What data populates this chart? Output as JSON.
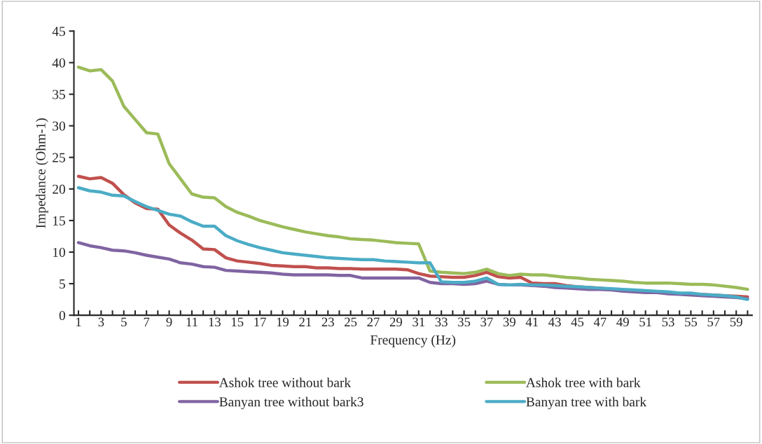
{
  "chart_data": {
    "type": "line",
    "xlabel": "Frequency (Hz)",
    "ylabel": "Impedance (Ohm-1)",
    "categories": [
      "1",
      null,
      "3",
      null,
      "5",
      null,
      "7",
      null,
      "9",
      null,
      "11",
      null,
      "13",
      null,
      "15",
      null,
      "17",
      null,
      "19",
      null,
      "21",
      null,
      "23",
      null,
      "25",
      null,
      "27",
      null,
      "29",
      null,
      "31",
      null,
      "33",
      null,
      "35",
      null,
      "37",
      null,
      "39",
      null,
      "41",
      null,
      "43",
      null,
      "45",
      null,
      "47",
      null,
      "49",
      null,
      "51",
      null,
      "53",
      null,
      "55",
      null,
      "57",
      null,
      "59",
      null
    ],
    "ylim": [
      0,
      45
    ],
    "yticks": [
      0,
      5,
      10,
      15,
      20,
      25,
      30,
      35,
      40,
      45
    ],
    "grid": false,
    "legend": "bottom",
    "marker": "none",
    "line_style": "solid",
    "series": [
      {
        "name": "Ashok tree without bark",
        "color": "#c0504d",
        "values": [
          22,
          21.6,
          21.8,
          20.9,
          19.1,
          17.8,
          16.9,
          16.8,
          14.3,
          13,
          11.9,
          10.5,
          10.4,
          9.1,
          8.6,
          8.4,
          8.2,
          7.9,
          7.8,
          7.7,
          7.7,
          7.5,
          7.5,
          7.4,
          7.4,
          7.3,
          7.3,
          7.3,
          7.3,
          7.2,
          6.6,
          6.2,
          6.1,
          6.0,
          6.0,
          6.3,
          6.8,
          6.1,
          5.9,
          6.0,
          5.1,
          5.0,
          5.0,
          4.7,
          4.5,
          4.4,
          4.3,
          4.1,
          4.0,
          3.9,
          3.8,
          3.7,
          3.5,
          3.4,
          3.3,
          3.3,
          3.2,
          3.1,
          3.0,
          2.9
        ]
      },
      {
        "name": "Ashok tree with bark",
        "color": "#9bbb59",
        "values": [
          39.3,
          38.7,
          38.9,
          37.1,
          33.1,
          31,
          28.9,
          28.7,
          24,
          21.6,
          19.2,
          18.7,
          18.6,
          17.2,
          16.3,
          15.7,
          15,
          14.5,
          14,
          13.6,
          13.2,
          12.9,
          12.6,
          12.4,
          12.1,
          12,
          11.9,
          11.7,
          11.5,
          11.4,
          11.3,
          7,
          6.8,
          6.7,
          6.6,
          6.8,
          7.3,
          6.6,
          6.3,
          6.5,
          6.4,
          6.4,
          6.2,
          6.0,
          5.9,
          5.7,
          5.6,
          5.5,
          5.4,
          5.2,
          5.1,
          5.1,
          5.1,
          5.0,
          4.9,
          4.9,
          4.8,
          4.6,
          4.4,
          4.1
        ]
      },
      {
        "name": "Banyan tree without bark3",
        "color": "#8064a2",
        "values": [
          11.5,
          11,
          10.7,
          10.3,
          10.2,
          9.9,
          9.5,
          9.2,
          8.9,
          8.3,
          8.1,
          7.7,
          7.6,
          7.1,
          7.0,
          6.9,
          6.8,
          6.7,
          6.5,
          6.4,
          6.4,
          6.4,
          6.4,
          6.3,
          6.3,
          5.9,
          5.9,
          5.9,
          5.9,
          5.9,
          5.9,
          5.2,
          5.0,
          5.0,
          4.9,
          5.0,
          5.4,
          4.9,
          4.8,
          4.8,
          4.7,
          4.6,
          4.4,
          4.3,
          4.2,
          4.1,
          4.1,
          4.0,
          3.8,
          3.7,
          3.6,
          3.6,
          3.4,
          3.3,
          3.2,
          3.1,
          3.0,
          2.9,
          2.8,
          2.6
        ]
      },
      {
        "name": "Banyan tree with bark",
        "color": "#4bacc6",
        "values": [
          20.2,
          19.7,
          19.5,
          19,
          18.9,
          18,
          17.2,
          16.6,
          16,
          15.7,
          14.8,
          14.1,
          14.1,
          12.6,
          11.8,
          11.2,
          10.7,
          10.3,
          9.9,
          9.7,
          9.5,
          9.3,
          9.1,
          9.0,
          8.9,
          8.8,
          8.8,
          8.6,
          8.5,
          8.4,
          8.3,
          8.3,
          5.3,
          5.2,
          5.2,
          5.4,
          5.9,
          4.9,
          4.8,
          4.9,
          4.8,
          4.8,
          4.7,
          4.6,
          4.5,
          4.4,
          4.3,
          4.2,
          4.1,
          4.0,
          3.9,
          3.8,
          3.7,
          3.5,
          3.5,
          3.3,
          3.2,
          3.1,
          2.9,
          2.5
        ]
      }
    ]
  }
}
